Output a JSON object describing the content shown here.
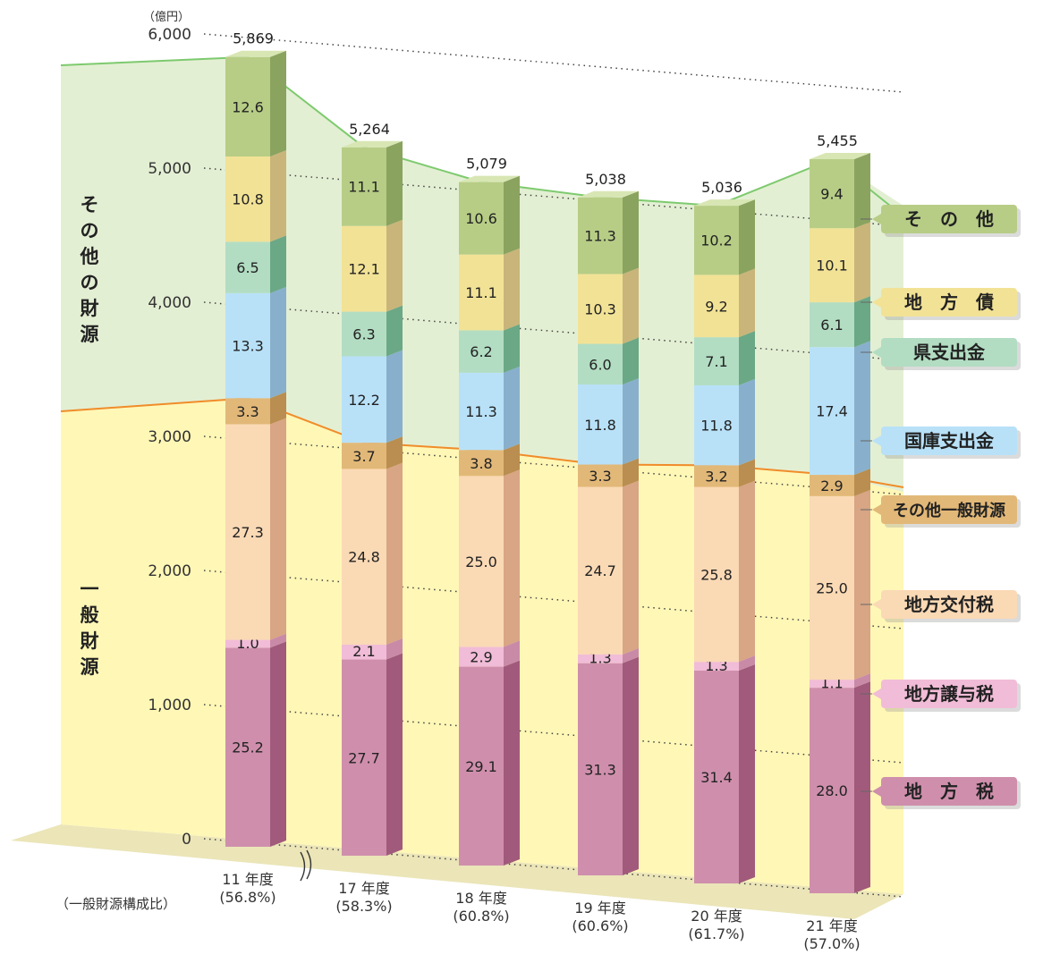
{
  "chart_data": {
    "type": "bar",
    "stacked": true,
    "unit_label": "（億円）",
    "y_ticks": [
      "0",
      "1,000",
      "2,000",
      "3,000",
      "4,000",
      "5,000",
      "6,000"
    ],
    "ylim": [
      0,
      6000
    ],
    "categories": [
      {
        "year": "11 年度",
        "ratio": "(56.8%)",
        "total": "5,869",
        "total_value": 5869
      },
      {
        "year": "17 年度",
        "ratio": "(58.3%)",
        "total": "5,264",
        "total_value": 5264
      },
      {
        "year": "18 年度",
        "ratio": "(60.8%)",
        "total": "5,079",
        "total_value": 5079
      },
      {
        "year": "19 年度",
        "ratio": "(60.6%)",
        "total": "5,038",
        "total_value": 5038
      },
      {
        "year": "20 年度",
        "ratio": "(61.7%)",
        "total": "5,036",
        "total_value": 5036
      },
      {
        "year": "21 年度",
        "ratio": "(57.0%)",
        "total": "5,455",
        "total_value": 5455
      }
    ],
    "series": [
      {
        "name": "地　方　税",
        "values": [
          25.2,
          27.7,
          29.1,
          31.3,
          31.4,
          28.0
        ],
        "front": "#cf8fac",
        "side": "#a15a7b"
      },
      {
        "name": "地方譲与税",
        "values": [
          1.0,
          2.1,
          2.9,
          1.3,
          1.3,
          1.1
        ],
        "front": "#f1bcd7",
        "side": "#c98aa8"
      },
      {
        "name": "地方交付税",
        "values": [
          27.3,
          24.8,
          25.0,
          24.7,
          25.8,
          25.0
        ],
        "front": "#fad9b5",
        "side": "#d8a585"
      },
      {
        "name": "その他一般財源",
        "values": [
          3.3,
          3.7,
          3.8,
          3.3,
          3.2,
          2.9
        ],
        "front": "#e2b878",
        "side": "#b98e50"
      },
      {
        "name": "国庫支出金",
        "values": [
          13.3,
          12.2,
          11.3,
          11.8,
          11.8,
          17.4
        ],
        "front": "#b8e1f8",
        "side": "#88b0cc"
      },
      {
        "name": "県支出金",
        "values": [
          6.5,
          6.3,
          6.2,
          6.0,
          7.1,
          6.1
        ],
        "front": "#b2ddc3",
        "side": "#6ba886"
      },
      {
        "name": "地　方　債",
        "values": [
          10.8,
          12.1,
          11.1,
          10.3,
          9.2,
          10.1
        ],
        "front": "#f2e296",
        "side": "#c9b57a"
      },
      {
        "name": "そ　の　他",
        "values": [
          12.6,
          11.1,
          10.6,
          11.3,
          10.2,
          9.4
        ],
        "front": "#b7cd86",
        "side": "#8aa35f"
      }
    ],
    "region_labels": {
      "other": "その他の財源",
      "general": "一般財源"
    },
    "ratio_caption": "（一般財源構成比）",
    "colors": {
      "other_region": "#e3efd3",
      "general_region": "#fff7b6",
      "floor": "#ebe5b8",
      "other_line": "#7dca6e",
      "general_line": "#f08c2a"
    }
  }
}
